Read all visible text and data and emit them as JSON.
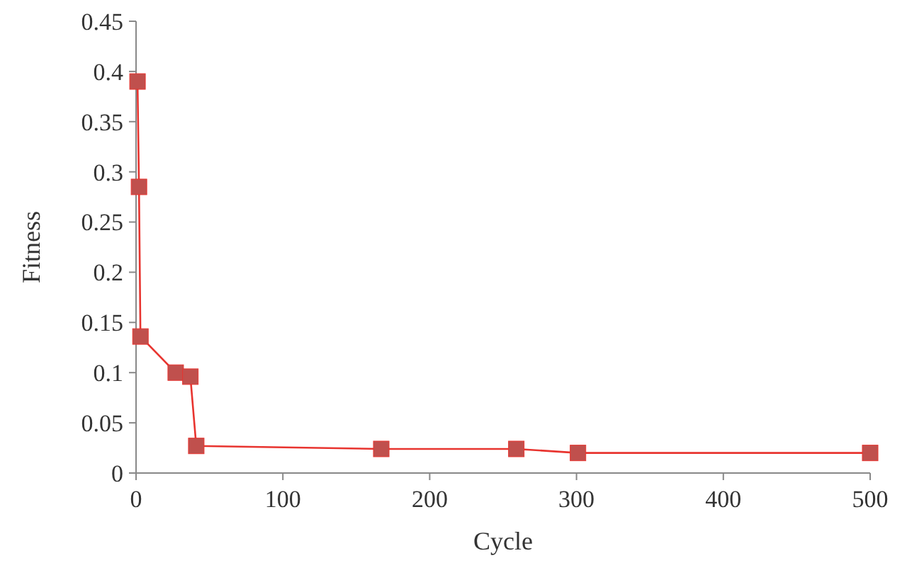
{
  "chart_data": {
    "type": "line",
    "xlabel": "Cycle",
    "ylabel": "Fitness",
    "x": [
      1,
      2,
      3,
      27,
      37,
      41,
      167,
      259,
      301,
      500
    ],
    "series": [
      {
        "color": "#e8342f",
        "values": [
          0.39,
          0.285,
          0.136,
          0.1,
          0.096,
          0.027,
          0.024,
          0.024,
          0.02,
          0.02
        ]
      }
    ],
    "marker": "square",
    "line_style": "solid",
    "grid": false,
    "xlim": [
      0,
      500
    ],
    "xticks": [
      0,
      100,
      200,
      300,
      400,
      500
    ],
    "ylim": [
      0,
      0.45
    ],
    "yticks": [
      0,
      0.05,
      0.1,
      0.15,
      0.2,
      0.25,
      0.3,
      0.35,
      0.4,
      0.45
    ]
  }
}
